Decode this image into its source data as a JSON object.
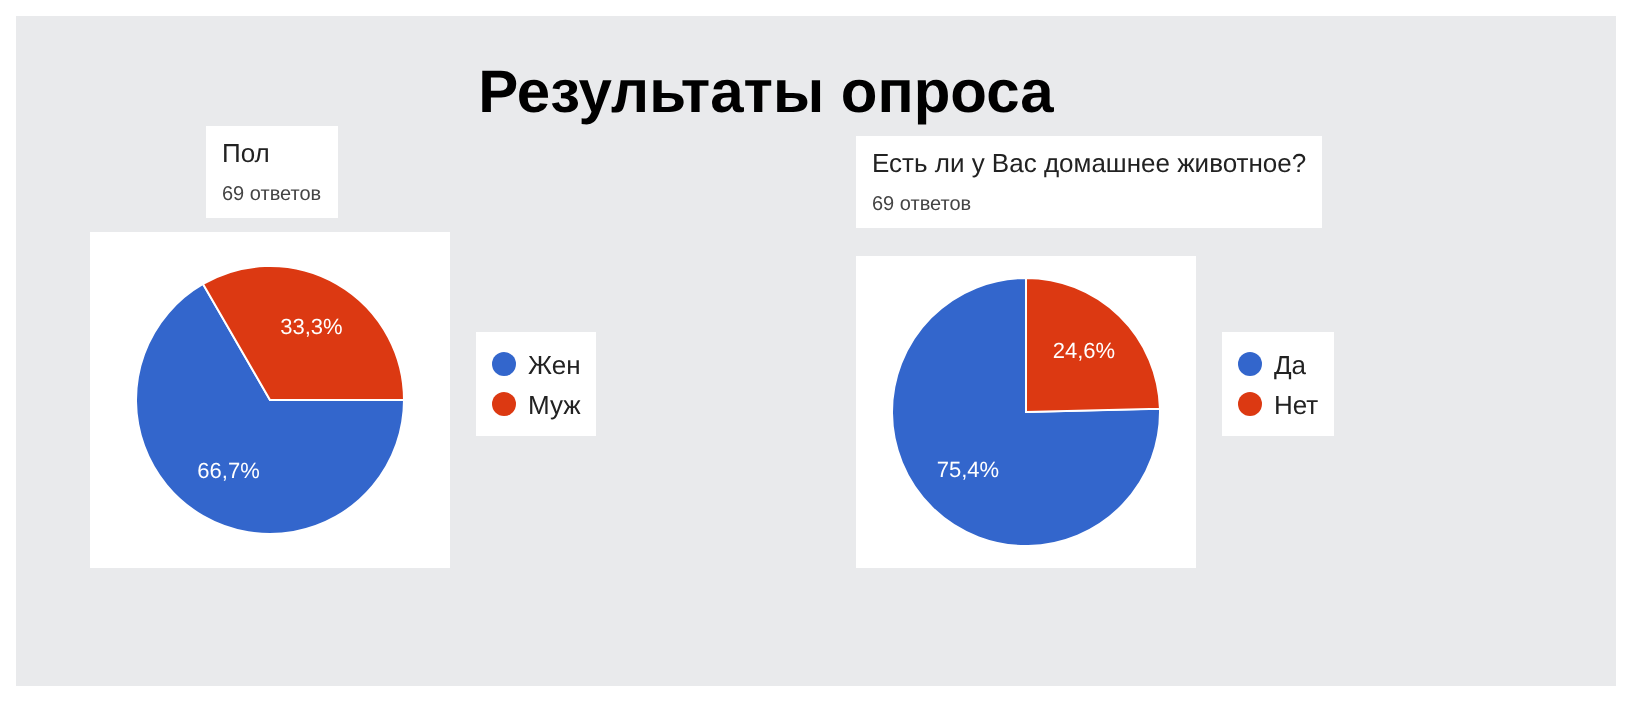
{
  "chart_data": [
    {
      "type": "pie",
      "title": "Пол",
      "subtitle": "69 ответов",
      "annotations": [
        "Результаты опроса"
      ],
      "categories": [
        "Жен",
        "Муж"
      ],
      "values": [
        66.7,
        33.3
      ],
      "value_labels": [
        "66,7%",
        "33,3%"
      ],
      "colors": [
        "#3366cc",
        "#dc3912"
      ],
      "legend": "right"
    },
    {
      "type": "pie",
      "title": "Есть ли у Вас домашнее животное?",
      "subtitle": "69 ответов",
      "categories": [
        "Да",
        "Нет"
      ],
      "values": [
        75.4,
        24.6
      ],
      "value_labels": [
        "75,4%",
        "24,6%"
      ],
      "colors": [
        "#3366cc",
        "#dc3912"
      ],
      "legend": "right"
    }
  ]
}
